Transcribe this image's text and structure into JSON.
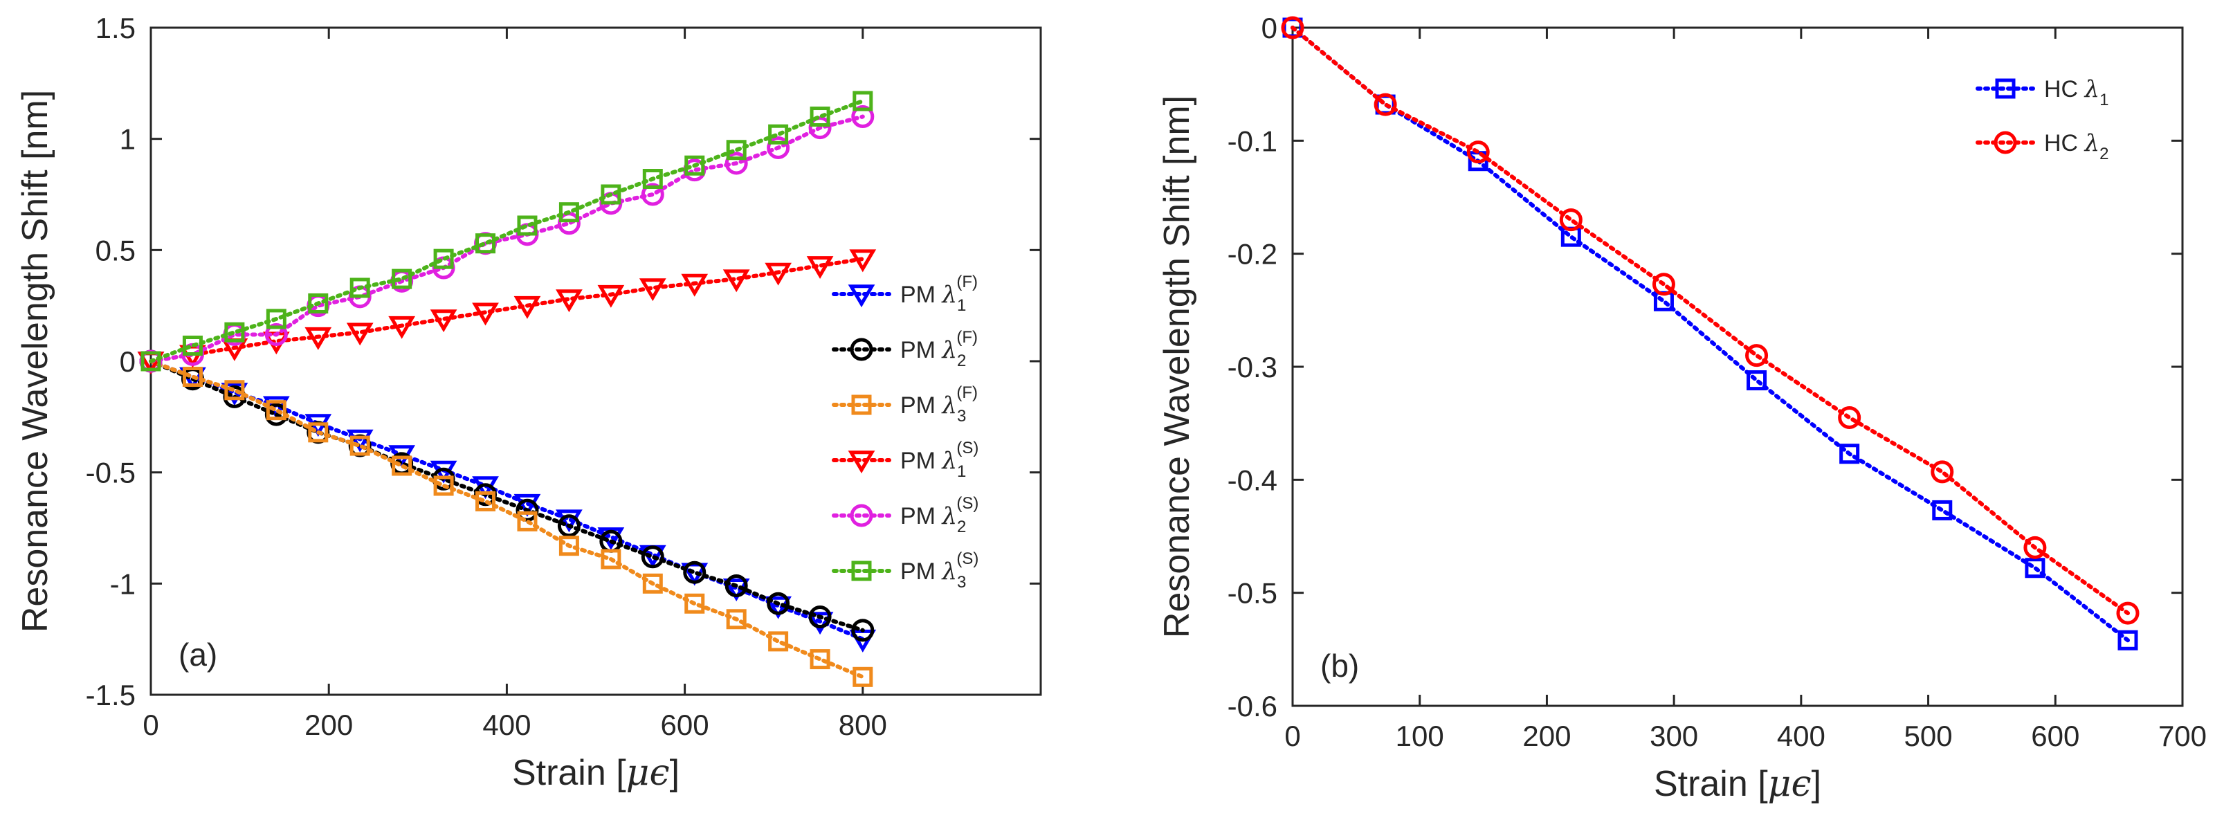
{
  "chart_data": [
    {
      "panel": "(a)",
      "type": "line",
      "xlabel_main": "Strain [",
      "xlabel_unit": "μϵ",
      "xlabel_close": "]",
      "ylabel": "Resonance Wavelength Shift [nm]",
      "xlim": [
        0,
        1000
      ],
      "ylim": [
        -1.5,
        1.5
      ],
      "xticks": [
        0,
        200,
        400,
        600,
        800
      ],
      "xtick_labels": [
        "0",
        "200",
        "400",
        "600",
        "800"
      ],
      "yticks": [
        -1.5,
        -1,
        -0.5,
        0,
        0.5,
        1,
        1.5
      ],
      "ytick_labels": [
        "-1.5",
        "-1",
        "-0.5",
        "0",
        "0.5",
        "1",
        "1.5"
      ],
      "grid": false,
      "legend_position": "right",
      "x": [
        0,
        47,
        94,
        141,
        188,
        235,
        282,
        329,
        376,
        423,
        470,
        517,
        564,
        611,
        658,
        705,
        752,
        800
      ],
      "series": [
        {
          "name_prefix": "PM ",
          "sub": "1",
          "sup": "(F)",
          "color": "#0000ff",
          "marker": "triangle-down",
          "values": [
            0,
            -0.07,
            -0.14,
            -0.2,
            -0.28,
            -0.35,
            -0.42,
            -0.49,
            -0.56,
            -0.64,
            -0.71,
            -0.79,
            -0.87,
            -0.95,
            -1.02,
            -1.1,
            -1.17,
            -1.25
          ]
        },
        {
          "name_prefix": "PM ",
          "sub": "2",
          "sup": "(F)",
          "color": "#000000",
          "marker": "circle",
          "values": [
            0,
            -0.08,
            -0.16,
            -0.24,
            -0.32,
            -0.38,
            -0.46,
            -0.53,
            -0.6,
            -0.67,
            -0.74,
            -0.81,
            -0.88,
            -0.95,
            -1.01,
            -1.09,
            -1.15,
            -1.21
          ]
        },
        {
          "name_prefix": "PM ",
          "sub": "3",
          "sup": "(F)",
          "color": "#f08a1c",
          "marker": "square",
          "values": [
            0,
            -0.07,
            -0.13,
            -0.22,
            -0.32,
            -0.38,
            -0.47,
            -0.56,
            -0.63,
            -0.72,
            -0.83,
            -0.89,
            -1.0,
            -1.09,
            -1.16,
            -1.26,
            -1.34,
            -1.42
          ]
        },
        {
          "name_prefix": "PM ",
          "sub": "1",
          "sup": "(S)",
          "color": "#ff0000",
          "marker": "triangle-down",
          "values": [
            0,
            0.03,
            0.06,
            0.09,
            0.11,
            0.13,
            0.16,
            0.19,
            0.22,
            0.25,
            0.28,
            0.3,
            0.33,
            0.35,
            0.37,
            0.4,
            0.43,
            0.46
          ]
        },
        {
          "name_prefix": "PM ",
          "sub": "2",
          "sup": "(S)",
          "color": "#e020e0",
          "marker": "circle",
          "values": [
            0,
            0.03,
            0.12,
            0.12,
            0.25,
            0.29,
            0.36,
            0.42,
            0.53,
            0.57,
            0.62,
            0.71,
            0.75,
            0.86,
            0.89,
            0.96,
            1.05,
            1.1
          ]
        },
        {
          "name_prefix": "PM ",
          "sub": "3",
          "sup": "(S)",
          "color": "#4db31a",
          "marker": "square",
          "values": [
            0,
            0.07,
            0.13,
            0.19,
            0.26,
            0.33,
            0.37,
            0.46,
            0.53,
            0.61,
            0.67,
            0.75,
            0.82,
            0.88,
            0.95,
            1.02,
            1.1,
            1.17
          ]
        }
      ]
    },
    {
      "panel": "(b)",
      "type": "line",
      "xlabel_main": "Strain [",
      "xlabel_unit": "μϵ",
      "xlabel_close": "]",
      "ylabel": "Resonance Wavelength Shift [nm]",
      "xlim": [
        0,
        700
      ],
      "ylim": [
        -0.6,
        0
      ],
      "xticks": [
        0,
        100,
        200,
        300,
        400,
        500,
        600,
        700
      ],
      "xtick_labels": [
        "0",
        "100",
        "200",
        "300",
        "400",
        "500",
        "600",
        "700"
      ],
      "yticks": [
        -0.6,
        -0.5,
        -0.4,
        -0.3,
        -0.2,
        -0.1,
        0
      ],
      "ytick_labels": [
        "-0.6",
        "-0.5",
        "-0.4",
        "-0.3",
        "-0.2",
        "-0.1",
        "0"
      ],
      "grid": false,
      "legend_position": "top-right",
      "x": [
        0,
        73,
        146,
        219,
        292,
        365,
        438,
        511,
        584,
        657
      ],
      "series": [
        {
          "name_prefix": "HC ",
          "sub": "1",
          "sup": "",
          "color": "#0000ff",
          "marker": "square",
          "values": [
            0,
            -0.068,
            -0.118,
            -0.185,
            -0.242,
            -0.312,
            -0.377,
            -0.427,
            -0.478,
            -0.542
          ]
        },
        {
          "name_prefix": "HC ",
          "sub": "2",
          "sup": "",
          "color": "#ff0000",
          "marker": "circle",
          "values": [
            0,
            -0.068,
            -0.11,
            -0.17,
            -0.227,
            -0.29,
            -0.345,
            -0.393,
            -0.46,
            -0.518
          ]
        }
      ]
    }
  ],
  "legend_lambda": "λ"
}
